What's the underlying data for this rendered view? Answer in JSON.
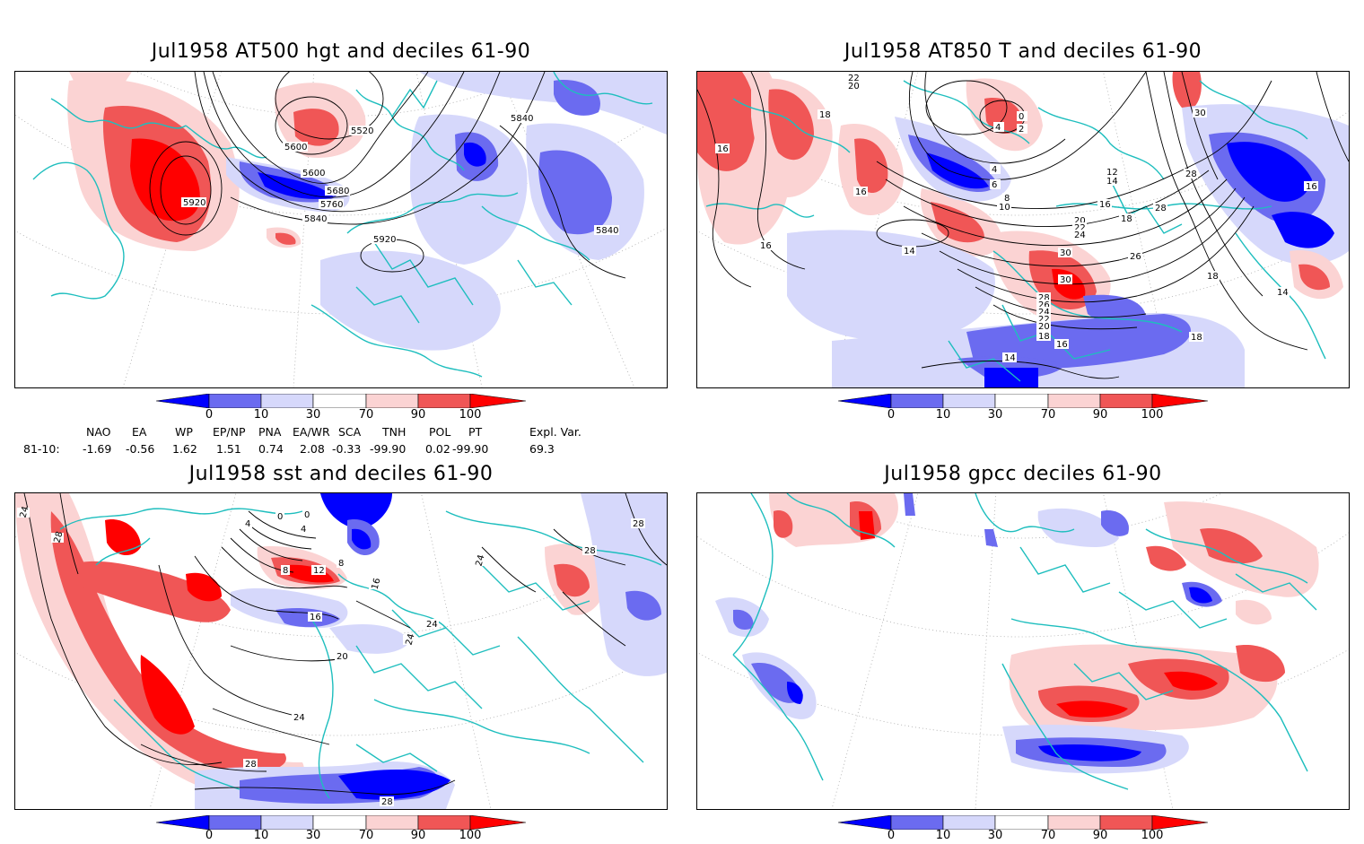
{
  "panels": [
    {
      "title": "Jul1958 AT500 hgt and deciles 61-90",
      "field": "500 hPa geopotential height (contours) with decile shading",
      "contour_labels": [
        "5920",
        "5600",
        "5520",
        "5840",
        "5600",
        "5680",
        "5760",
        "5840",
        "5920",
        "5840"
      ]
    },
    {
      "title": "Jul1958 AT850 T and deciles 61-90",
      "field": "850 hPa temperature (contours) with decile shading",
      "contour_labels": [
        "22",
        "20",
        "18",
        "16",
        "0",
        "2",
        "4",
        "16",
        "4",
        "6",
        "8",
        "10",
        "12",
        "14",
        "16",
        "18",
        "20",
        "22",
        "24",
        "26",
        "28",
        "30",
        "30",
        "28",
        "16",
        "16",
        "14",
        "14",
        "18",
        "18",
        "30",
        "28",
        "26",
        "24",
        "22",
        "20",
        "18",
        "16",
        "14"
      ]
    },
    {
      "title": "Jul1958 sst and deciles 61-90",
      "field": "Sea surface temperature (contours) with decile shading",
      "contour_labels": [
        "24",
        "28",
        "4",
        "0",
        "0",
        "4",
        "8",
        "12",
        "8",
        "16",
        "16",
        "20",
        "24",
        "24",
        "24",
        "28",
        "28",
        "24",
        "28"
      ]
    },
    {
      "title": "Jul1958 gpcc deciles 61-90",
      "field": "GPCC precipitation deciles",
      "contour_labels": []
    }
  ],
  "colorbar": {
    "ticks": [
      "0",
      "10",
      "30",
      "70",
      "90",
      "100"
    ],
    "colors": [
      "#0000ff",
      "#6b6bf0",
      "#d6d8fb",
      "#ffffff",
      "#fbd3d3",
      "#f05656",
      "#ff0000"
    ]
  },
  "indices": {
    "headers": [
      "NAO",
      "EA",
      "WP",
      "EP/NP",
      "PNA",
      "EA/WR",
      "SCA",
      "TNH",
      "POL",
      "PT",
      "Expl. Var."
    ],
    "row_label": "81-10:",
    "values": [
      "-1.69",
      "-0.56",
      "1.62",
      "1.51",
      "0.74",
      "2.08",
      "-0.33",
      "-99.90",
      "0.02",
      "-99.90",
      "69.3"
    ]
  }
}
